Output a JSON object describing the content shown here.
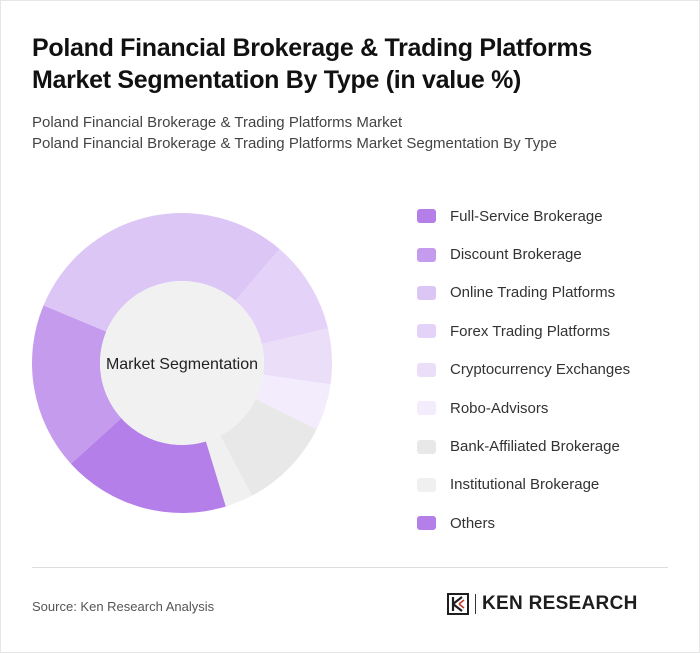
{
  "header": {
    "title": "Poland Financial Brokerage & Trading Platforms Market Segmentation By Type (in value %)",
    "subtitle_line1": "Poland Financial Brokerage & Trading Platforms Market",
    "subtitle_line2": "Poland Financial Brokerage & Trading Platforms Market Segmentation By Type"
  },
  "chart_data": {
    "type": "pie",
    "variant": "donut",
    "center_label": "Market Segmentation",
    "legend_position": "right",
    "categories": [
      "Full-Service Brokerage",
      "Discount Brokerage",
      "Online Trading Platforms",
      "Forex Trading Platforms",
      "Cryptocurrency Exchanges",
      "Robo-Advisors",
      "Bank-Affiliated Brokerage",
      "Institutional Brokerage",
      "Others"
    ],
    "values": [
      18,
      18,
      30,
      10,
      6,
      5,
      10,
      3,
      0
    ],
    "colors": [
      "#b57fe9",
      "#c59ced",
      "#dcc6f6",
      "#e4d2f8",
      "#ebdef9",
      "#f3ecfc",
      "#e8e8e8",
      "#f0f0f0",
      "#b57fe9"
    ]
  },
  "footer": {
    "source": "Source: Ken Research Analysis",
    "logo_text": "KEN RESEARCH"
  }
}
